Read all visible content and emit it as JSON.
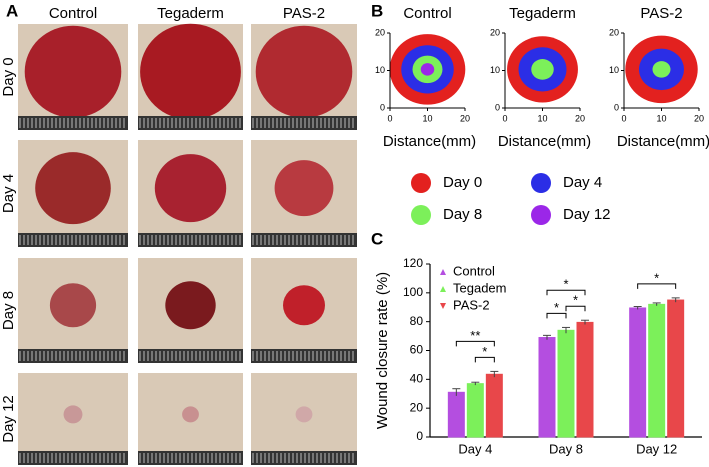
{
  "panel_a": {
    "label": "A",
    "columns": [
      "Control",
      "Tegaderm",
      "PAS-2"
    ],
    "rows": [
      "Day 0",
      "Day 4",
      "Day 8",
      "Day 12"
    ]
  },
  "panel_b": {
    "label": "B",
    "titles": [
      "Control",
      "Tegaderm",
      "PAS-2"
    ],
    "xlabel": "Distance(mm)",
    "xlim": [
      0,
      20
    ],
    "ylim": [
      0,
      20
    ],
    "xticks": [
      0,
      10,
      20
    ],
    "yticks": [
      0,
      10,
      20
    ],
    "legend": [
      {
        "name": "Day 0",
        "color": "#e3211f"
      },
      {
        "name": "Day 4",
        "color": "#2b2ee6"
      },
      {
        "name": "Day 8",
        "color": "#7cf05a"
      },
      {
        "name": "Day 12",
        "color": "#9b27e8"
      }
    ]
  },
  "chart_data": {
    "type": "bar",
    "label": "C",
    "ylabel": "Wound closure rate (%)",
    "categories": [
      "Day 4",
      "Day 8",
      "Day 12"
    ],
    "series": [
      {
        "name": "Control",
        "color": "#b44ee0",
        "values": [
          31,
          69,
          89.5
        ],
        "errors": [
          2.5,
          1.5,
          1
        ]
      },
      {
        "name": "Tegadem",
        "color": "#7cf05a",
        "values": [
          37,
          74,
          92
        ],
        "errors": [
          1,
          2,
          1
        ]
      },
      {
        "name": "PAS-2",
        "color": "#e8474a",
        "values": [
          43.5,
          79.5,
          95
        ],
        "errors": [
          2,
          1.5,
          1.5
        ]
      }
    ],
    "ylim": [
      0,
      120
    ],
    "yticks": [
      0,
      20,
      40,
      60,
      80,
      100,
      120
    ],
    "legend": "upper left",
    "annotations": [
      {
        "text": "**",
        "category": 0,
        "from": 0,
        "to": 2
      },
      {
        "text": "*",
        "category": 0,
        "from": 1,
        "to": 2
      },
      {
        "text": "*",
        "category": 1,
        "from": 0,
        "to": 2
      },
      {
        "text": "*",
        "category": 1,
        "from": 0,
        "to": 1
      },
      {
        "text": "*",
        "category": 1,
        "from": 1,
        "to": 2
      },
      {
        "text": "*",
        "category": 2,
        "from": 0,
        "to": 2
      }
    ]
  }
}
